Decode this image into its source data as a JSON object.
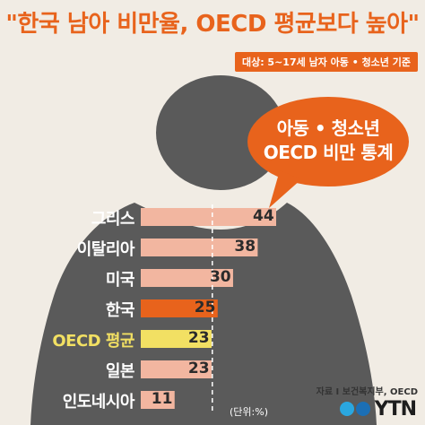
{
  "header": {
    "title": "\"한국 남아 비만율, OECD 평균보다 높아\"",
    "subtitle": "대상: 5~17세 남자 아동 • 청소년 기준"
  },
  "bubble": {
    "line1": "아동 • 청소년",
    "line2": "OECD 비만 통계"
  },
  "chart_data": {
    "type": "bar",
    "orientation": "horizontal",
    "categories": [
      "그리스",
      "이탈리아",
      "미국",
      "한국",
      "OECD 평균",
      "일본",
      "인도네시아"
    ],
    "values": [
      44,
      38,
      30,
      25,
      23,
      23,
      11
    ],
    "value_labels": [
      "44",
      "38",
      "30",
      "25",
      "23",
      "23",
      "11"
    ],
    "unit_label": "(단위:%)",
    "xlim": [
      0,
      44
    ],
    "reference_line": 25,
    "highlight": {
      "한국": "#e8631c",
      "OECD 평균": "#f2e063"
    },
    "default_bar_color": "#f2b6a0"
  },
  "footer": {
    "source": "자료 I 보건복지부, OECD",
    "logo_text": "YTN"
  },
  "colors": {
    "accent": "#e8631c",
    "silhouette": "#5a5a5a",
    "background": "#f1ece4"
  }
}
